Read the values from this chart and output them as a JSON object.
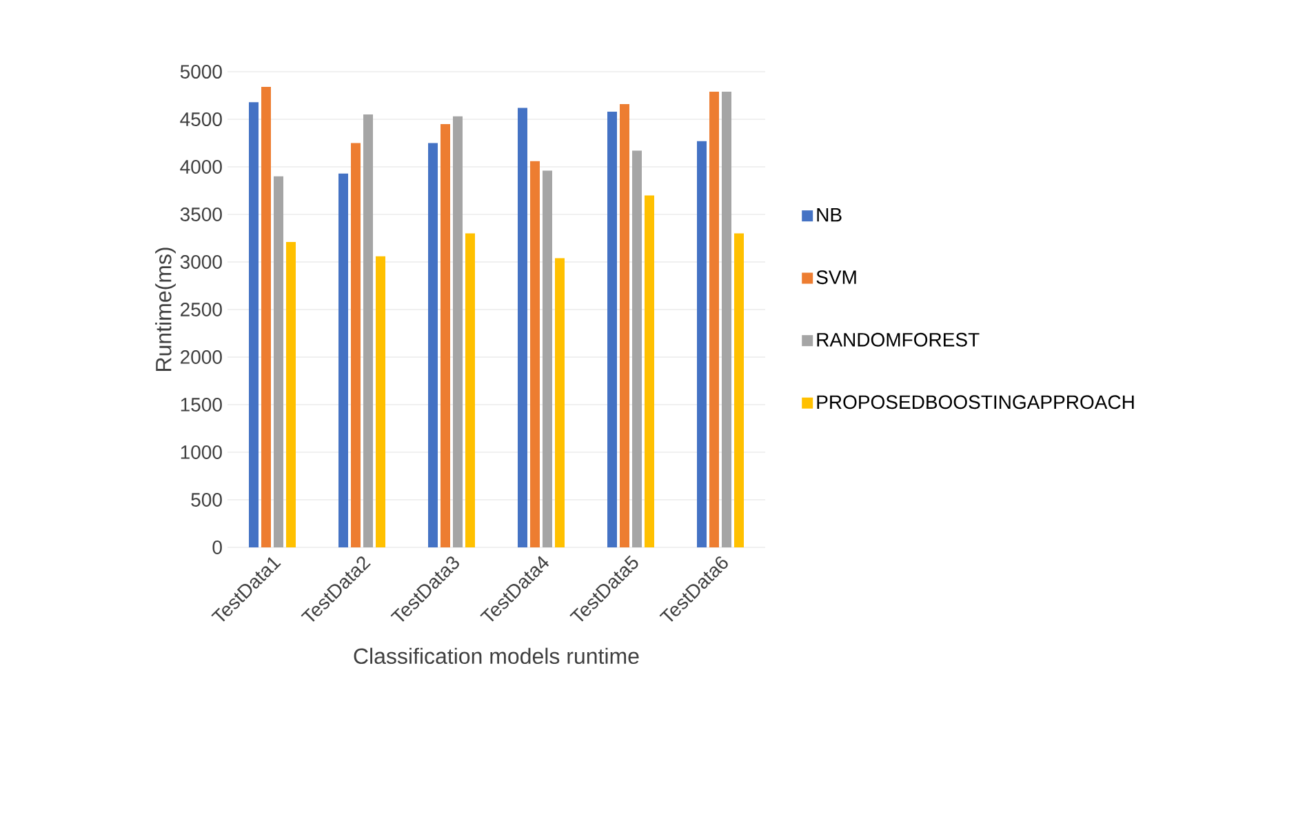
{
  "chart_data": {
    "type": "bar",
    "xlabel": "Classification models runtime",
    "ylabel": "Runtime(ms)",
    "categories": [
      "TestData1",
      "TestData2",
      "TestData3",
      "TestData4",
      "TestData5",
      "TestData6"
    ],
    "series": [
      {
        "name": "NB",
        "color": "#4472c4",
        "values": [
          4680,
          3930,
          4250,
          4620,
          4580,
          4270
        ]
      },
      {
        "name": "SVM",
        "color": "#ed7d31",
        "values": [
          4840,
          4250,
          4450,
          4060,
          4660,
          4790
        ]
      },
      {
        "name": "RANDOMFOREST",
        "color": "#a5a5a5",
        "values": [
          3900,
          4550,
          4530,
          3960,
          4170,
          4790
        ]
      },
      {
        "name": "PROPOSEDBOOSTINGAPPROACH",
        "color": "#ffc000",
        "values": [
          3210,
          3060,
          3300,
          3040,
          3700,
          3300
        ]
      }
    ],
    "ylim": [
      0,
      5000
    ],
    "yticks": [
      0,
      500,
      1000,
      1500,
      2000,
      2500,
      3000,
      3500,
      4000,
      4500,
      5000
    ],
    "grid": "y",
    "legend": "right"
  }
}
